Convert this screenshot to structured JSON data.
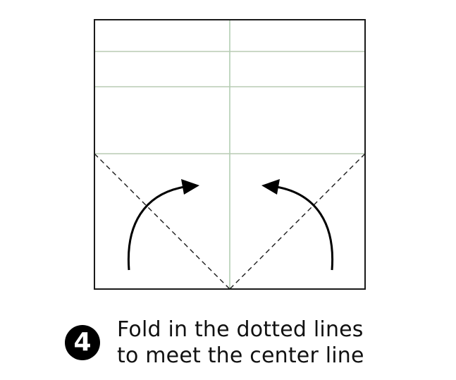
{
  "step": {
    "number": "4"
  },
  "instruction": {
    "line1": "Fold in the dotted lines",
    "line2": "to meet the center line"
  },
  "colors": {
    "outline": "#1a1a1a",
    "crease": "#a8c8a8",
    "dashed": "#1a1a1a",
    "arrow": "#000000",
    "badge": "#000000"
  },
  "icons": {
    "left_fold_arrow": "curved-arrow-up-right",
    "right_fold_arrow": "curved-arrow-up-left"
  }
}
